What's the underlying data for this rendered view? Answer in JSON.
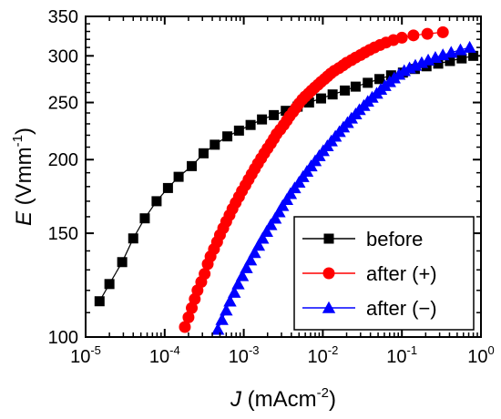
{
  "chart_data": {
    "type": "scatter",
    "title": "",
    "xlabel": {
      "symbol": "J",
      "text": " (mAcm",
      "sup": "-2",
      "close": ")"
    },
    "ylabel": {
      "symbol": "E",
      "text": " (Vmm",
      "sup": "-1",
      "close": ")"
    },
    "x_scale": "log",
    "y_scale": "log",
    "xlim": [
      1e-05,
      1
    ],
    "ylim": [
      100,
      350
    ],
    "x_ticks": [
      {
        "value": 1e-05,
        "base": "10",
        "exp": "-5"
      },
      {
        "value": 0.0001,
        "base": "10",
        "exp": "-4"
      },
      {
        "value": 0.001,
        "base": "10",
        "exp": "-3"
      },
      {
        "value": 0.01,
        "base": "10",
        "exp": "-2"
      },
      {
        "value": 0.1,
        "base": "10",
        "exp": "-1"
      },
      {
        "value": 1,
        "base": "10",
        "exp": "0"
      }
    ],
    "y_ticks": [
      {
        "value": 100,
        "label": "100"
      },
      {
        "value": 150,
        "label": "150"
      },
      {
        "value": 200,
        "label": "200"
      },
      {
        "value": 250,
        "label": "250"
      },
      {
        "value": 300,
        "label": "300"
      },
      {
        "value": 350,
        "label": "350"
      }
    ],
    "grid": false,
    "legend_position": "bottom-right",
    "series": [
      {
        "name": "before",
        "color": "#000000",
        "marker": "square",
        "x": [
          1.5e-05,
          2e-05,
          2.9e-05,
          4e-05,
          5.6e-05,
          7.9e-05,
          0.00011,
          0.00015,
          0.00022,
          0.00031,
          0.00043,
          0.00062,
          0.00087,
          0.00122,
          0.0017,
          0.0024,
          0.0034,
          0.0048,
          0.0067,
          0.0095,
          0.0133,
          0.019,
          0.026,
          0.037,
          0.052,
          0.073,
          0.103,
          0.146,
          0.205,
          0.288,
          0.405,
          0.57,
          0.8
        ],
        "y": [
          115,
          123,
          134,
          147,
          159,
          170,
          179,
          187,
          195,
          205,
          212,
          219,
          224,
          229,
          234,
          238,
          242,
          246,
          250,
          254,
          258,
          262,
          266,
          270,
          274,
          278,
          281,
          285,
          288,
          291,
          294,
          297,
          300
        ]
      },
      {
        "name": "after (+)",
        "color": "#ff0000",
        "marker": "circle",
        "line": "fit",
        "x": [
          0.00018,
          0.0002,
          0.00022,
          0.00024,
          0.00026,
          0.00029,
          0.00032,
          0.00035,
          0.00038,
          0.00042,
          0.00046,
          0.0005,
          0.00055,
          0.0006,
          0.00066,
          0.00072,
          0.00079,
          0.00087,
          0.00095,
          0.00105,
          0.00115,
          0.00126,
          0.00138,
          0.00151,
          0.00166,
          0.00182,
          0.002,
          0.0022,
          0.0024,
          0.0026,
          0.0029,
          0.0032,
          0.0035,
          0.0038,
          0.0042,
          0.0046,
          0.005,
          0.0055,
          0.006,
          0.0066,
          0.0072,
          0.0079,
          0.0087,
          0.0095,
          0.0105,
          0.0115,
          0.0126,
          0.014,
          0.016,
          0.018,
          0.02,
          0.023,
          0.026,
          0.03,
          0.034,
          0.039,
          0.045,
          0.053,
          0.063,
          0.078,
          0.1,
          0.14,
          0.21,
          0.33
        ],
        "y": [
          104,
          108,
          112,
          116,
          120,
          124,
          128,
          133,
          137,
          141,
          145,
          149,
          153,
          157,
          161,
          165,
          169,
          173,
          177,
          181,
          185,
          189,
          193,
          197,
          201,
          205,
          209,
          213,
          217,
          221,
          225,
          229,
          233,
          237,
          241,
          245,
          249,
          253,
          256,
          259,
          262,
          265,
          268,
          271,
          274,
          277,
          280,
          283,
          286,
          289,
          292,
          295,
          298,
          301,
          304,
          307,
          310,
          313,
          316,
          319,
          322,
          325,
          327,
          329
        ]
      },
      {
        "name": "after (−)",
        "color": "#0000ff",
        "marker": "triangle",
        "line": "fit",
        "x": [
          0.00047,
          0.00053,
          0.0006,
          0.00067,
          0.00076,
          0.00085,
          0.00096,
          0.00108,
          0.00122,
          0.00137,
          0.00154,
          0.00173,
          0.00195,
          0.0022,
          0.0025,
          0.0028,
          0.0031,
          0.0035,
          0.0039,
          0.0044,
          0.005,
          0.0056,
          0.0063,
          0.0071,
          0.008,
          0.009,
          0.0101,
          0.0114,
          0.0128,
          0.0144,
          0.0162,
          0.0182,
          0.0205,
          0.023,
          0.026,
          0.029,
          0.033,
          0.037,
          0.042,
          0.048,
          0.054,
          0.061,
          0.07,
          0.08,
          0.092,
          0.107,
          0.125,
          0.148,
          0.178,
          0.215,
          0.265,
          0.33,
          0.42,
          0.55,
          0.72
        ],
        "y": [
          103,
          107,
          111,
          115,
          119,
          123,
          127,
          131,
          135,
          139,
          143,
          147,
          151,
          155,
          159,
          163,
          167,
          171,
          175,
          179,
          183,
          187,
          191,
          195,
          199,
          203,
          207,
          211,
          215,
          219,
          223,
          227,
          231,
          235,
          239,
          243,
          247,
          251,
          255,
          259,
          263,
          267,
          271,
          275,
          279,
          283,
          286,
          289,
          292,
          295,
          298,
          301,
          304,
          307,
          310
        ]
      }
    ]
  }
}
